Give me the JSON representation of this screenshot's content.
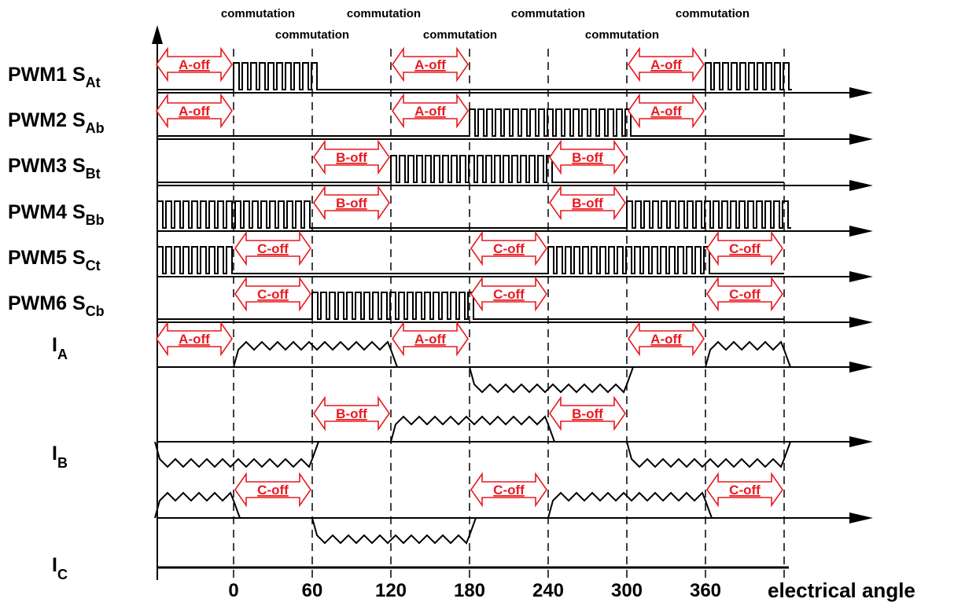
{
  "colors": {
    "ink": "#000000",
    "off_marker": "#e8191f",
    "background": "#ffffff"
  },
  "commutation_top": [
    "commutation",
    "commutation",
    "commutation",
    "commutation"
  ],
  "commutation_bottom": [
    "commutation",
    "commutation",
    "commutation"
  ],
  "signals": [
    {
      "id": "pwm1",
      "name": "PWM1 S",
      "sub": "At",
      "kind": "pwm",
      "pwm": [
        [
          0,
          60
        ],
        [
          360,
          420
        ]
      ],
      "off": [
        {
          "label": "A-off",
          "span": [
            -60,
            0
          ]
        },
        {
          "label": "A-off",
          "span": [
            120,
            180
          ]
        },
        {
          "label": "A-off",
          "span": [
            300,
            360
          ]
        }
      ]
    },
    {
      "id": "pwm2",
      "name": "PWM2 S",
      "sub": "Ab",
      "kind": "pwm",
      "pwm": [
        [
          180,
          300
        ]
      ],
      "off": [
        {
          "label": "A-off",
          "span": [
            -60,
            0
          ]
        },
        {
          "label": "A-off",
          "span": [
            120,
            180
          ]
        },
        {
          "label": "A-off",
          "span": [
            300,
            360
          ]
        }
      ]
    },
    {
      "id": "pwm3",
      "name": "PWM3 S",
      "sub": "Bt",
      "kind": "pwm",
      "pwm": [
        [
          120,
          240
        ]
      ],
      "off": [
        {
          "label": "B-off",
          "span": [
            60,
            120
          ]
        },
        {
          "label": "B-off",
          "span": [
            240,
            300
          ]
        }
      ]
    },
    {
      "id": "pwm4",
      "name": "PWM4 S",
      "sub": "Bb",
      "kind": "pwm",
      "pwm": [
        [
          -60,
          60
        ],
        [
          300,
          420
        ]
      ],
      "off": [
        {
          "label": "B-off",
          "span": [
            60,
            120
          ]
        },
        {
          "label": "B-off",
          "span": [
            240,
            300
          ]
        }
      ]
    },
    {
      "id": "pwm5",
      "name": "PWM5 S",
      "sub": "Ct",
      "kind": "pwm",
      "pwm": [
        [
          -60,
          0
        ],
        [
          240,
          360
        ]
      ],
      "off": [
        {
          "label": "C-off",
          "span": [
            0,
            60
          ]
        },
        {
          "label": "C-off",
          "span": [
            180,
            240
          ]
        },
        {
          "label": "C-off",
          "span": [
            360,
            420
          ]
        }
      ]
    },
    {
      "id": "pwm6",
      "name": "PWM6 S",
      "sub": "Cb",
      "kind": "pwm",
      "pwm": [
        [
          60,
          180
        ]
      ],
      "off": [
        {
          "label": "C-off",
          "span": [
            0,
            60
          ]
        },
        {
          "label": "C-off",
          "span": [
            180,
            240
          ]
        },
        {
          "label": "C-off",
          "span": [
            360,
            420
          ]
        }
      ]
    },
    {
      "id": "ia",
      "name": "I",
      "sub": "A",
      "kind": "current",
      "pos": [
        [
          0,
          120
        ],
        [
          360,
          420
        ]
      ],
      "neg": [
        [
          180,
          300
        ]
      ],
      "off": [
        {
          "label": "A-off",
          "span": [
            -60,
            0
          ]
        },
        {
          "label": "A-off",
          "span": [
            120,
            180
          ]
        },
        {
          "label": "A-off",
          "span": [
            300,
            360
          ]
        }
      ]
    },
    {
      "id": "ib",
      "name": "I",
      "sub": "B",
      "kind": "current",
      "pos": [
        [
          120,
          240
        ]
      ],
      "neg": [
        [
          -60,
          60
        ],
        [
          300,
          420
        ]
      ],
      "off": [
        {
          "label": "B-off",
          "span": [
            60,
            120
          ]
        },
        {
          "label": "B-off",
          "span": [
            240,
            300
          ]
        }
      ]
    },
    {
      "id": "ic",
      "name": "I",
      "sub": "C",
      "kind": "current",
      "pos": [
        [
          -60,
          0
        ],
        [
          240,
          360
        ]
      ],
      "neg": [
        [
          60,
          180
        ]
      ],
      "off": [
        {
          "label": "C-off",
          "span": [
            0,
            60
          ]
        },
        {
          "label": "C-off",
          "span": [
            180,
            240
          ]
        },
        {
          "label": "C-off",
          "span": [
            360,
            420
          ]
        }
      ]
    }
  ],
  "angle_ticks": [
    "0",
    "60",
    "120",
    "180",
    "240",
    "300",
    "360"
  ],
  "x_axis_label": "electrical angle"
}
